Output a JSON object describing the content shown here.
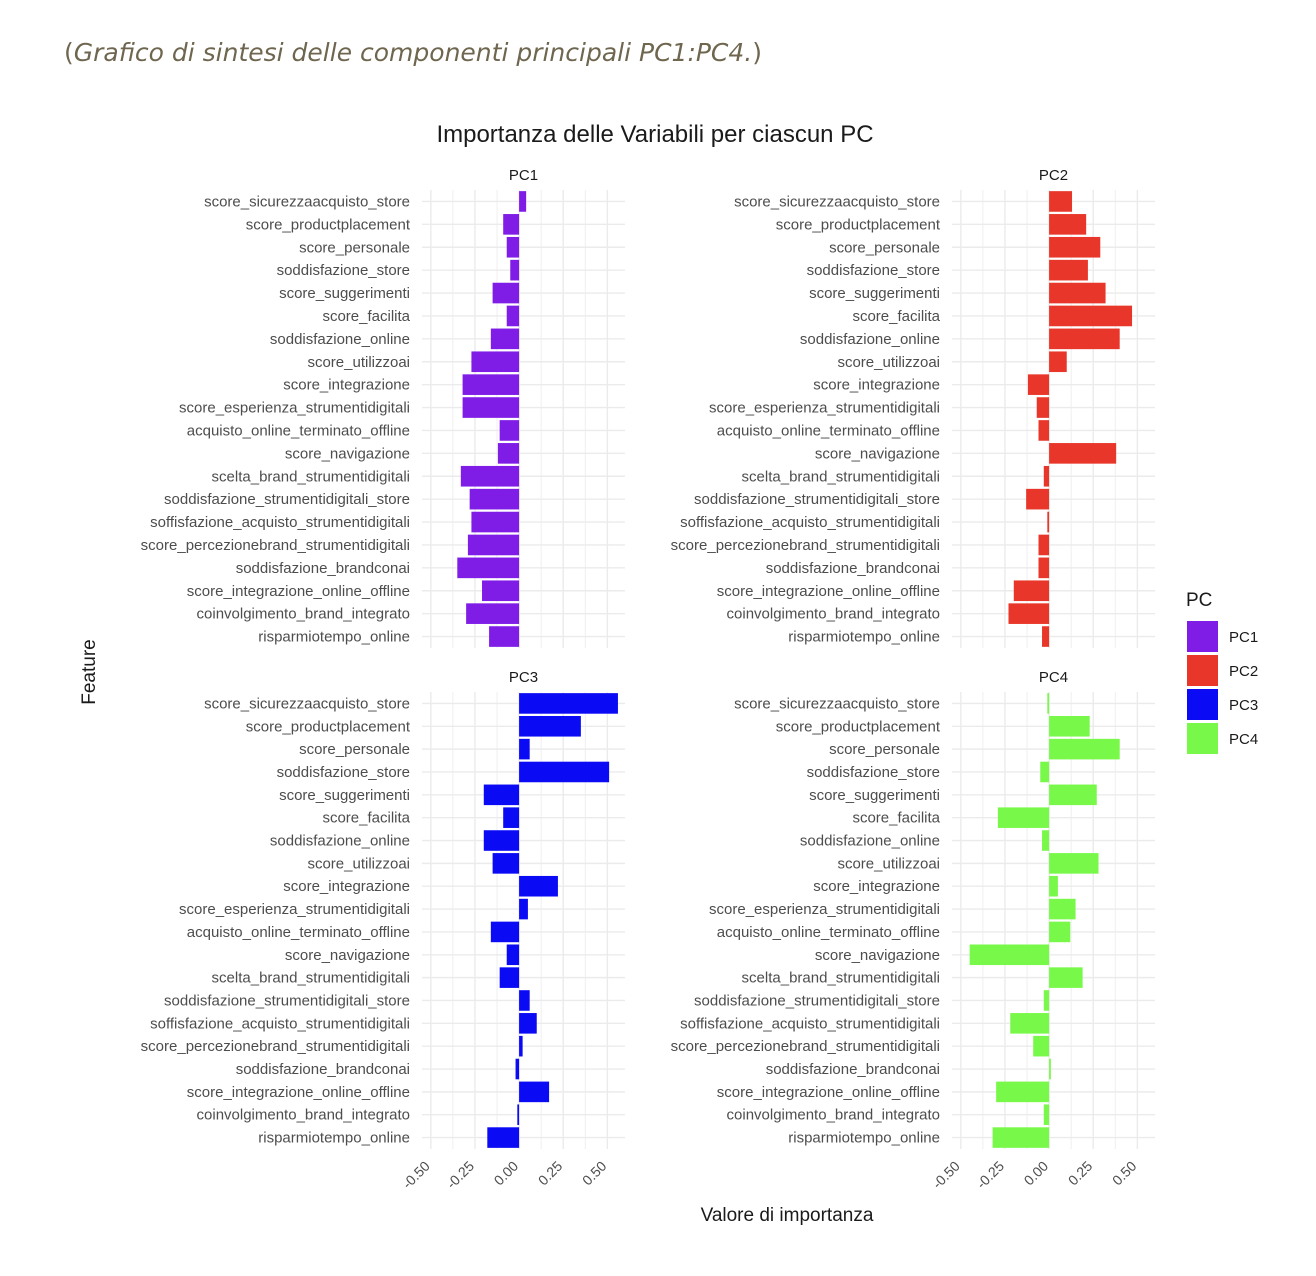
{
  "caption": {
    "open": "(",
    "text": "Grafico di sintesi delle componenti principali PC1:PC4.",
    "close": ")"
  },
  "chart_data": {
    "type": "bar",
    "orientation": "horizontal",
    "title": "Importanza delle Variabili per ciascun PC",
    "xlabel": "Valore di importanza",
    "ylabel": "Feature",
    "xlim": [
      -0.55,
      0.6
    ],
    "xticks": [
      -0.5,
      -0.25,
      0,
      0.25,
      0.5
    ],
    "xtick_labels": [
      "-0.50",
      "-0.25",
      "0.00",
      "0.25",
      "0.50"
    ],
    "grid": true,
    "legend": {
      "title": "PC",
      "position": "right"
    },
    "categories": [
      "score_sicurezzaacquisto_store",
      "score_productplacement",
      "score_personale",
      "soddisfazione_store",
      "score_suggerimenti",
      "score_facilita",
      "soddisfazione_online",
      "score_utilizzoai",
      "score_integrazione",
      "score_esperienza_strumentidigitali",
      "acquisto_online_terminato_offline",
      "score_navigazione",
      "scelta_brand_strumentidigitali",
      "soddisfazione_strumentidigitali_store",
      "soffisfazione_acquisto_strumentidigitali",
      "score_percezionebrand_strumentidigitali",
      "soddisfazione_brandconai",
      "score_integrazione_online_offline",
      "coinvolgimento_brand_integrato",
      "risparmiotempo_online"
    ],
    "series": [
      {
        "name": "PC1",
        "color": "#7f1ce6",
        "values": [
          0.04,
          -0.09,
          -0.07,
          -0.05,
          -0.15,
          -0.07,
          -0.16,
          -0.27,
          -0.32,
          -0.32,
          -0.11,
          -0.12,
          -0.33,
          -0.28,
          -0.27,
          -0.29,
          -0.35,
          -0.21,
          -0.3,
          -0.17
        ]
      },
      {
        "name": "PC2",
        "color": "#e8372a",
        "values": [
          0.13,
          0.21,
          0.29,
          0.22,
          0.32,
          0.47,
          0.4,
          0.1,
          -0.12,
          -0.07,
          -0.06,
          0.38,
          -0.03,
          -0.13,
          -0.01,
          -0.06,
          -0.06,
          -0.2,
          -0.23,
          -0.04
        ]
      },
      {
        "name": "PC3",
        "color": "#0a0af5",
        "values": [
          0.56,
          0.35,
          0.06,
          0.51,
          -0.2,
          -0.09,
          -0.2,
          -0.15,
          0.22,
          0.05,
          -0.16,
          -0.07,
          -0.11,
          0.06,
          0.1,
          0.02,
          -0.02,
          0.17,
          -0.01,
          -0.18
        ]
      },
      {
        "name": "PC4",
        "color": "#78f94a",
        "values": [
          -0.01,
          0.23,
          0.4,
          -0.05,
          0.27,
          -0.29,
          -0.04,
          0.28,
          0.05,
          0.15,
          0.12,
          -0.45,
          0.19,
          -0.03,
          -0.22,
          -0.09,
          0.01,
          -0.3,
          -0.03,
          -0.32
        ]
      }
    ]
  }
}
